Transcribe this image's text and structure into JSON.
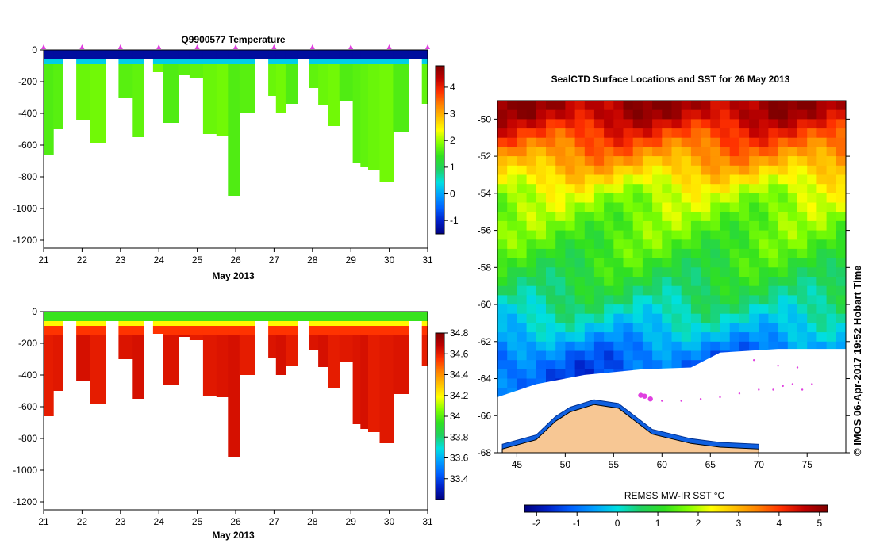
{
  "charts": {
    "temperature": {
      "type": "heatmap",
      "title": "Q9900577  Temperature",
      "xlabel": "May 2013",
      "x_ticks": [
        "21",
        "22",
        "23",
        "24",
        "25",
        "26",
        "27",
        "28",
        "29",
        "30",
        "31"
      ],
      "y_ticks": [
        "0",
        "-200",
        "-400",
        "-600",
        "-800",
        "-1000",
        "-1200"
      ],
      "colorbar_ticks": [
        "4",
        "3",
        "2",
        "1",
        "0",
        "-1"
      ]
    },
    "salinity": {
      "type": "heatmap",
      "title": "",
      "xlabel": "May 2013",
      "x_ticks": [
        "21",
        "22",
        "23",
        "24",
        "25",
        "26",
        "27",
        "28",
        "29",
        "30",
        "31"
      ],
      "y_ticks": [
        "0",
        "-200",
        "-400",
        "-600",
        "-800",
        "-1000",
        "-1200"
      ],
      "colorbar_ticks": [
        "34.8",
        "34.6",
        "34.4",
        "34.2",
        "34",
        "33.8",
        "33.6",
        "33.4"
      ]
    },
    "sst_map": {
      "type": "heatmap",
      "title": "SealCTD Surface Locations and SST for 26 May 2013",
      "lon_ticks": [
        "45",
        "50",
        "55",
        "60",
        "65",
        "70",
        "75"
      ],
      "lat_ticks": [
        "-50",
        "-52",
        "-54",
        "-56",
        "-58",
        "-60",
        "-62",
        "-64",
        "-66",
        "-68"
      ],
      "colorbar_label": "REMSS MW-IR SST °C",
      "colorbar_ticks": [
        "-2",
        "-1",
        "0",
        "1",
        "2",
        "3",
        "4",
        "5"
      ],
      "side_note": "©  IMOS 06-Apr-2017 19:52 Hobart Time"
    }
  },
  "chart_data": [
    {
      "type": "heatmap",
      "title": "Q9900577  Temperature",
      "xlabel": "May 2013",
      "ylabel": "",
      "xlim": [
        21,
        31
      ],
      "ylim": [
        -1250,
        0
      ],
      "color_range": [
        -1.5,
        4.8
      ],
      "profiles": [
        {
          "day": 21.0,
          "max_depth": 660
        },
        {
          "day": 21.25,
          "max_depth": 500
        },
        {
          "day": 21.5,
          "max_depth": 60
        },
        {
          "day": 21.85,
          "max_depth": 440
        },
        {
          "day": 22.2,
          "max_depth": 585
        },
        {
          "day": 22.6,
          "max_depth": 60
        },
        {
          "day": 22.95,
          "max_depth": 300
        },
        {
          "day": 23.3,
          "max_depth": 550
        },
        {
          "day": 23.6,
          "max_depth": 60
        },
        {
          "day": 23.85,
          "max_depth": 140
        },
        {
          "day": 24.1,
          "max_depth": 460
        },
        {
          "day": 24.5,
          "max_depth": 160
        },
        {
          "day": 24.8,
          "max_depth": 180
        },
        {
          "day": 25.15,
          "max_depth": 530
        },
        {
          "day": 25.5,
          "max_depth": 540
        },
        {
          "day": 25.8,
          "max_depth": 920
        },
        {
          "day": 26.1,
          "max_depth": 400
        },
        {
          "day": 26.5,
          "max_depth": 60
        },
        {
          "day": 26.85,
          "max_depth": 290
        },
        {
          "day": 27.05,
          "max_depth": 400
        },
        {
          "day": 27.3,
          "max_depth": 340
        },
        {
          "day": 27.6,
          "max_depth": 60
        },
        {
          "day": 27.9,
          "max_depth": 240
        },
        {
          "day": 28.15,
          "max_depth": 350
        },
        {
          "day": 28.4,
          "max_depth": 480
        },
        {
          "day": 28.7,
          "max_depth": 320
        },
        {
          "day": 29.05,
          "max_depth": 710
        },
        {
          "day": 29.25,
          "max_depth": 740
        },
        {
          "day": 29.45,
          "max_depth": 760
        },
        {
          "day": 29.75,
          "max_depth": 830
        },
        {
          "day": 30.1,
          "max_depth": 520
        },
        {
          "day": 30.5,
          "max_depth": 60
        },
        {
          "day": 30.85,
          "max_depth": 340
        }
      ],
      "layers": [
        {
          "depth_range": [
            0,
            60
          ],
          "value": -1.3
        },
        {
          "depth_range": [
            60,
            90
          ],
          "value": 0.3
        },
        {
          "depth_range": [
            90,
            1000
          ],
          "value": 1.7
        }
      ]
    },
    {
      "type": "heatmap",
      "title": "",
      "xlabel": "May 2013",
      "ylabel": "",
      "xlim": [
        21,
        31
      ],
      "ylim": [
        -1250,
        0
      ],
      "color_range": [
        33.2,
        34.8
      ],
      "layers": [
        {
          "depth_range": [
            0,
            60
          ],
          "value": 33.95
        },
        {
          "depth_range": [
            60,
            90
          ],
          "value": 34.2
        },
        {
          "depth_range": [
            90,
            150
          ],
          "value": 34.55
        },
        {
          "depth_range": [
            150,
            1000
          ],
          "value": 34.62
        }
      ]
    },
    {
      "type": "heatmap",
      "title": "SealCTD Surface Locations and SST for 26 May 2013",
      "xlabel": "",
      "ylabel": "",
      "xlim": [
        43,
        79
      ],
      "ylim": [
        -68,
        -49
      ],
      "color_range": [
        -2.3,
        5.2
      ],
      "sst_by_latitude": [
        {
          "lat": -49.5,
          "sst": 4.9
        },
        {
          "lat": -51.0,
          "sst": 3.9
        },
        {
          "lat": -52.5,
          "sst": 3.0
        },
        {
          "lat": -54.0,
          "sst": 2.0
        },
        {
          "lat": -55.5,
          "sst": 1.6
        },
        {
          "lat": -57.0,
          "sst": 1.3
        },
        {
          "lat": -58.5,
          "sst": 0.9
        },
        {
          "lat": -60.0,
          "sst": 0.4
        },
        {
          "lat": -61.5,
          "sst": -0.3
        },
        {
          "lat": -62.5,
          "sst": -0.9
        },
        {
          "lat": -63.5,
          "sst": -1.2
        }
      ],
      "ice_edge": [
        {
          "lon": 43.0,
          "lat": -65.0
        },
        {
          "lon": 47.0,
          "lat": -64.3
        },
        {
          "lon": 52.0,
          "lat": -63.8
        },
        {
          "lon": 58.0,
          "lat": -63.5
        },
        {
          "lon": 63.0,
          "lat": -63.4
        },
        {
          "lon": 66.0,
          "lat": -62.6
        },
        {
          "lon": 72.0,
          "lat": -62.4
        },
        {
          "lon": 79.0,
          "lat": -62.4
        }
      ],
      "antarctica_coast": [
        {
          "lon": 43.5,
          "lat": -67.8
        },
        {
          "lon": 47.0,
          "lat": -67.3
        },
        {
          "lon": 49.0,
          "lat": -66.3
        },
        {
          "lon": 50.5,
          "lat": -65.8
        },
        {
          "lon": 53.0,
          "lat": -65.4
        },
        {
          "lon": 55.5,
          "lat": -65.6
        },
        {
          "lon": 57.0,
          "lat": -66.2
        },
        {
          "lon": 59.0,
          "lat": -67.0
        },
        {
          "lon": 63.0,
          "lat": -67.5
        },
        {
          "lon": 66.0,
          "lat": -67.7
        },
        {
          "lon": 70.0,
          "lat": -67.8
        }
      ],
      "seal_locations": [
        {
          "lon": 57.8,
          "lat": -64.9
        },
        {
          "lon": 58.2,
          "lat": -64.95
        },
        {
          "lon": 58.8,
          "lat": -65.1
        },
        {
          "lon": 60.0,
          "lat": -65.2
        },
        {
          "lon": 62.0,
          "lat": -65.2
        },
        {
          "lon": 64.0,
          "lat": -65.1
        },
        {
          "lon": 66.0,
          "lat": -65.0
        },
        {
          "lon": 68.0,
          "lat": -64.8
        },
        {
          "lon": 70.0,
          "lat": -64.6
        },
        {
          "lon": 71.5,
          "lat": -64.6
        },
        {
          "lon": 72.5,
          "lat": -64.4
        },
        {
          "lon": 73.5,
          "lat": -64.3
        },
        {
          "lon": 74.5,
          "lat": -64.6
        },
        {
          "lon": 75.5,
          "lat": -64.3
        },
        {
          "lon": 74.0,
          "lat": -63.4
        },
        {
          "lon": 72.0,
          "lat": -63.3
        },
        {
          "lon": 69.5,
          "lat": -63.0
        }
      ]
    }
  ],
  "colors": {
    "cmap": [
      "#000080",
      "#0020c8",
      "#0060ff",
      "#00a0ff",
      "#00e0e0",
      "#20d060",
      "#30e020",
      "#80ff00",
      "#ffff00",
      "#ffc000",
      "#ff8000",
      "#ff3000",
      "#c00000",
      "#800000"
    ],
    "marker": "#e040e0",
    "land": "#f7c794",
    "ice": "#ffffff"
  }
}
